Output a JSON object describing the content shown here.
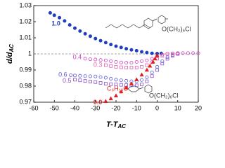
{
  "chart_data": {
    "type": "scatter",
    "x_label": {
      "text": "T-T",
      "sub": "AC"
    },
    "y_label": {
      "text": "d/d",
      "sub": "AC"
    },
    "xlim": [
      -60,
      20
    ],
    "xticks": [
      -60,
      -50,
      -40,
      -30,
      -20,
      -10,
      0,
      10,
      20
    ],
    "ylim": [
      0.97,
      1.03
    ],
    "yticks": [
      0.97,
      0.98,
      0.99,
      1,
      1.01,
      1.02,
      1.03
    ],
    "reference_line": 1,
    "annotations": [
      "O(CH₂)₆Cl",
      "C₆H₁₃O",
      "O(CH₂)₆Cl"
    ],
    "series": [
      {
        "name": "1.0",
        "color": "#1f3fbf",
        "marker": "circle",
        "filled": true,
        "x": [
          -52,
          -50,
          -47.5,
          -45,
          -42.5,
          -40,
          -37.5,
          -35,
          -32.5,
          -30,
          -27.5,
          -25,
          -22.5,
          -20,
          -17.5,
          -15,
          -12.5,
          -10,
          -7.5,
          -5,
          -2.5,
          0,
          2
        ],
        "values": [
          1.0255,
          1.024,
          1.0225,
          1.0205,
          1.018,
          1.016,
          1.0142,
          1.0125,
          1.011,
          1.0095,
          1.0082,
          1.007,
          1.0058,
          1.0048,
          1.004,
          1.0032,
          1.0025,
          1.002,
          1.0013,
          1.0008,
          1.0004,
          1.0002,
          1.0003
        ]
      },
      {
        "name": "0.6",
        "color": "#5a5adc",
        "marker": "circle",
        "filled": false,
        "x": [
          -42,
          -40,
          -37.5,
          -35,
          -32.5,
          -30,
          -27.5,
          -25,
          -22.5,
          -20,
          -17.5,
          -15,
          -12.5,
          -10,
          -7.5,
          -5,
          -2.5,
          0,
          2.5,
          5,
          7.5,
          10
        ],
        "values": [
          0.9868,
          0.9866,
          0.9864,
          0.9862,
          0.9861,
          0.986,
          0.9856,
          0.9852,
          0.9846,
          0.984,
          0.9836,
          0.9833,
          0.983,
          0.983,
          0.9838,
          0.9855,
          0.9885,
          0.992,
          0.9955,
          0.998,
          0.9993,
          1.0
        ]
      },
      {
        "name": "0.5",
        "color": "#8a4fc8",
        "marker": "square",
        "filled": false,
        "x": [
          -40,
          -37.5,
          -35,
          -32.5,
          -30,
          -27.5,
          -25,
          -22.5,
          -20,
          -17.5,
          -15,
          -12.5,
          -10,
          -7.5,
          -5,
          -2.5,
          0,
          2.5,
          5,
          7.5,
          10
        ],
        "values": [
          0.984,
          0.9836,
          0.9832,
          0.9828,
          0.9825,
          0.982,
          0.9815,
          0.9812,
          0.981,
          0.9808,
          0.9806,
          0.9805,
          0.9805,
          0.981,
          0.983,
          0.9862,
          0.99,
          0.994,
          0.997,
          0.9988,
          1.0
        ]
      },
      {
        "name": "0.4",
        "color": "#d040c8",
        "marker": "circle",
        "filled": false,
        "x": [
          -35,
          -32.5,
          -30,
          -27.5,
          -25,
          -22.5,
          -20,
          -17.5,
          -15,
          -12.5,
          -10,
          -7.5,
          -5,
          -2.5,
          0,
          2.5,
          5,
          7.5,
          10,
          12.5,
          15,
          17.5,
          20
        ],
        "values": [
          0.997,
          0.9967,
          0.9965,
          0.9962,
          0.996,
          0.9955,
          0.995,
          0.9947,
          0.9945,
          0.9945,
          0.995,
          0.9955,
          0.996,
          0.997,
          0.9985,
          0.9995,
          1.0,
          1.0003,
          1.0005,
          1.0005,
          1.0005,
          1.0005,
          1.0005
        ]
      },
      {
        "name": "0.3",
        "color": "#e060b0",
        "marker": "square",
        "filled": false,
        "x": [
          -25,
          -22.5,
          -20,
          -17.5,
          -15,
          -12.5,
          -10,
          -7.5,
          -5,
          -2.5,
          0,
          2.5,
          5,
          7.5,
          10
        ],
        "values": [
          0.993,
          0.9925,
          0.992,
          0.9917,
          0.9915,
          0.9915,
          0.9915,
          0.992,
          0.993,
          0.9948,
          0.997,
          0.9988,
          1.0,
          1.0002,
          1.0003
        ]
      },
      {
        "name": "0.0",
        "color": "#e02020",
        "marker": "triangle",
        "filled": true,
        "x": [
          -25,
          -22.5,
          -20,
          -17.5,
          -15,
          -12.5,
          -10,
          -7.5,
          -5,
          -3.5,
          -2,
          -1,
          0
        ],
        "values": [
          0.9705,
          0.9722,
          0.974,
          0.9765,
          0.979,
          0.9815,
          0.984,
          0.987,
          0.99,
          0.9925,
          0.995,
          0.997,
          0.999
        ]
      }
    ]
  }
}
